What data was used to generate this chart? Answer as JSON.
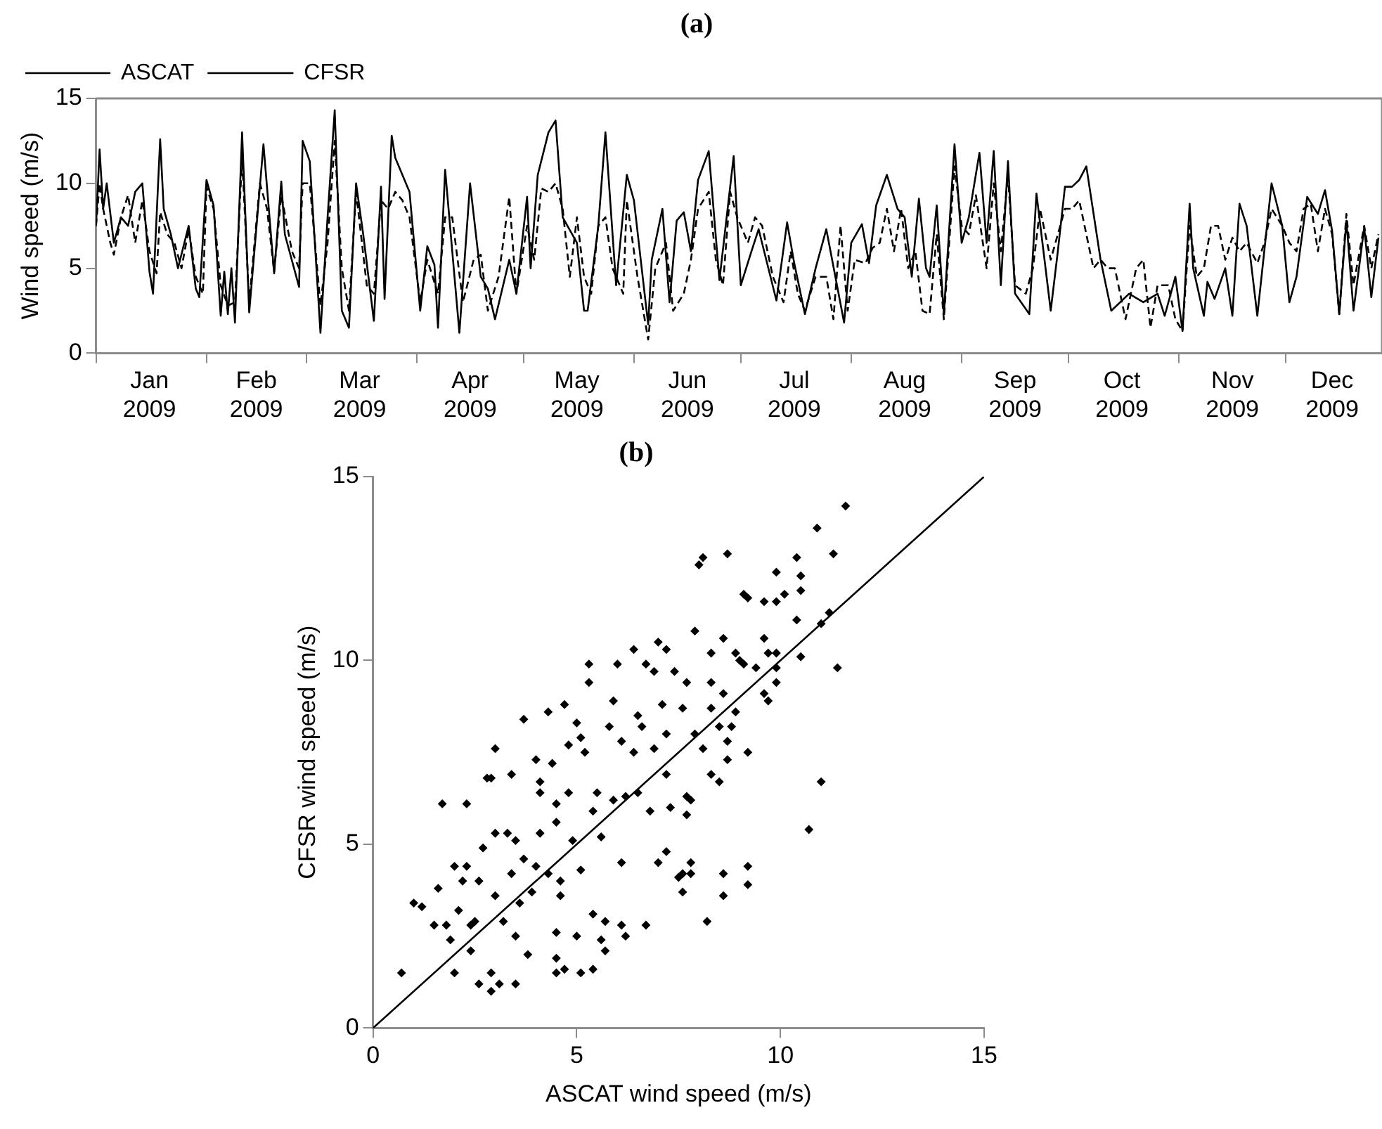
{
  "chart_data": [
    {
      "type": "line",
      "title": "(a)",
      "ylabel": "Wind speed (m/s)",
      "legend": "top left",
      "marker": "none",
      "grid": false,
      "xlim": [
        "2009-01-01",
        "2009-12-28"
      ],
      "xticks": [
        {
          "value": "2009-01-01",
          "label": null
        },
        {
          "value": "2009-01-16",
          "label": "Jan 2009"
        },
        {
          "value": "2009-02-01",
          "label": null
        },
        {
          "value": "2009-02-15",
          "label": "Feb 2009"
        },
        {
          "value": "2009-03-01",
          "label": null
        },
        {
          "value": "2009-03-16",
          "label": "Mar 2009"
        },
        {
          "value": "2009-04-01",
          "label": null
        },
        {
          "value": "2009-04-16",
          "label": "Apr 2009"
        },
        {
          "value": "2009-05-01",
          "label": null
        },
        {
          "value": "2009-05-16",
          "label": "May 2009"
        },
        {
          "value": "2009-06-01",
          "label": null
        },
        {
          "value": "2009-06-16",
          "label": "Jun 2009"
        },
        {
          "value": "2009-07-01",
          "label": null
        },
        {
          "value": "2009-07-16",
          "label": "Jul 2009"
        },
        {
          "value": "2009-08-01",
          "label": null
        },
        {
          "value": "2009-08-16",
          "label": "Aug 2009"
        },
        {
          "value": "2009-09-01",
          "label": null
        },
        {
          "value": "2009-09-16",
          "label": "Sep 2009"
        },
        {
          "value": "2009-10-01",
          "label": null
        },
        {
          "value": "2009-10-16",
          "label": "Oct 2009"
        },
        {
          "value": "2009-11-01",
          "label": null
        },
        {
          "value": "2009-11-16",
          "label": "Nov 2009"
        },
        {
          "value": "2009-12-01",
          "label": null
        },
        {
          "value": "2009-12-14",
          "label": "Dec 2009"
        }
      ],
      "ylim": [
        0,
        15
      ],
      "yticks": [
        0,
        5,
        10,
        15
      ],
      "series": [
        {
          "name": "ASCAT",
          "color": "#000000",
          "line_style": "dashed",
          "x": [
            "2009-01-01",
            "2009-01-02",
            "2009-01-03",
            "2009-01-05",
            "2009-01-06",
            "2009-01-08",
            "2009-01-10",
            "2009-01-12",
            "2009-01-14",
            "2009-01-16",
            "2009-01-18",
            "2009-01-19",
            "2009-01-21",
            "2009-01-23",
            "2009-01-25",
            "2009-01-27",
            "2009-01-29",
            "2009-01-31",
            "2009-02-01",
            "2009-02-03",
            "2009-02-05",
            "2009-02-07",
            "2009-02-09",
            "2009-02-11",
            "2009-02-13",
            "2009-02-16",
            "2009-02-18",
            "2009-02-20",
            "2009-02-22",
            "2009-02-25",
            "2009-02-27",
            "2009-02-28",
            "2009-03-02",
            "2009-03-05",
            "2009-03-07",
            "2009-03-09",
            "2009-03-11",
            "2009-03-13",
            "2009-03-15",
            "2009-03-18",
            "2009-03-20",
            "2009-03-22",
            "2009-03-24",
            "2009-03-26",
            "2009-03-28",
            "2009-03-30",
            "2009-04-02",
            "2009-04-04",
            "2009-04-07",
            "2009-04-09",
            "2009-04-11",
            "2009-04-14",
            "2009-04-17",
            "2009-04-19",
            "2009-04-21",
            "2009-04-24",
            "2009-04-27",
            "2009-04-29",
            "2009-05-02",
            "2009-05-04",
            "2009-05-06",
            "2009-05-08",
            "2009-05-10",
            "2009-05-12",
            "2009-05-14",
            "2009-05-16",
            "2009-05-18",
            "2009-05-20",
            "2009-05-22",
            "2009-05-24",
            "2009-05-26",
            "2009-05-29",
            "2009-05-30",
            "2009-06-02",
            "2009-06-05",
            "2009-06-07",
            "2009-06-10",
            "2009-06-12",
            "2009-06-15",
            "2009-06-17",
            "2009-06-19",
            "2009-06-22",
            "2009-06-24",
            "2009-06-26",
            "2009-06-28",
            "2009-06-30",
            "2009-07-03",
            "2009-07-05",
            "2009-07-07",
            "2009-07-10",
            "2009-07-13",
            "2009-07-15",
            "2009-07-17",
            "2009-07-19",
            "2009-07-22",
            "2009-07-25",
            "2009-07-27",
            "2009-07-29",
            "2009-07-31",
            "2009-08-02",
            "2009-08-05",
            "2009-08-07",
            "2009-08-09",
            "2009-08-11",
            "2009-08-13",
            "2009-08-15",
            "2009-08-17",
            "2009-08-19",
            "2009-08-21",
            "2009-08-23",
            "2009-08-25",
            "2009-08-27",
            "2009-08-30",
            "2009-09-01",
            "2009-09-03",
            "2009-09-05",
            "2009-09-08",
            "2009-09-10",
            "2009-09-12",
            "2009-09-14",
            "2009-09-16",
            "2009-09-19",
            "2009-09-21",
            "2009-09-23",
            "2009-09-26",
            "2009-09-28",
            "2009-09-30",
            "2009-10-02",
            "2009-10-04",
            "2009-10-06",
            "2009-10-08",
            "2009-10-10",
            "2009-10-12",
            "2009-10-14",
            "2009-10-17",
            "2009-10-20",
            "2009-10-22",
            "2009-10-24",
            "2009-10-26",
            "2009-10-29",
            "2009-10-31",
            "2009-11-02",
            "2009-11-04",
            "2009-11-06",
            "2009-11-08",
            "2009-11-10",
            "2009-11-12",
            "2009-11-14",
            "2009-11-16",
            "2009-11-18",
            "2009-11-20",
            "2009-11-23",
            "2009-11-25",
            "2009-11-27",
            "2009-11-30",
            "2009-12-02",
            "2009-12-04",
            "2009-12-06",
            "2009-12-08",
            "2009-12-10",
            "2009-12-12",
            "2009-12-14",
            "2009-12-16",
            "2009-12-18",
            "2009-12-20",
            "2009-12-23",
            "2009-12-25",
            "2009-12-27"
          ],
          "values": [
            7.5,
            10,
            8.5,
            6.5,
            5.8,
            8,
            9.3,
            6.5,
            9,
            6,
            4.7,
            8.3,
            7,
            6.5,
            5,
            7.3,
            4.5,
            3.5,
            9.8,
            8.5,
            4,
            2.8,
            3,
            11.5,
            3,
            10,
            8.5,
            4.8,
            9.3,
            6,
            5,
            10,
            10,
            2.8,
            6.5,
            12.5,
            5,
            2.5,
            9.5,
            4,
            3.5,
            9,
            8.5,
            9.5,
            9,
            8,
            3,
            5.5,
            3.5,
            8,
            8,
            3,
            5.5,
            5.8,
            2.5,
            4.5,
            9.2,
            3.5,
            7.5,
            5.5,
            9.7,
            9.5,
            10,
            8.5,
            4.5,
            8,
            4.5,
            3.5,
            7.5,
            8,
            5,
            3.5,
            9,
            4.5,
            0.8,
            5,
            6.5,
            2.5,
            3.5,
            5.5,
            8.5,
            9.5,
            5.5,
            4,
            9.5,
            8,
            6.5,
            8,
            7.5,
            4.5,
            3,
            6,
            3.5,
            2.5,
            4.5,
            4.5,
            2,
            7.5,
            2.5,
            5.5,
            5.3,
            6.2,
            6.5,
            8.5,
            6,
            8.5,
            5,
            6,
            2.5,
            2.3,
            7,
            2,
            11,
            7.5,
            7,
            9.3,
            5,
            10,
            6,
            10.5,
            4,
            3.5,
            5,
            8.5,
            5.5,
            7,
            8.5,
            8.5,
            9,
            7,
            5,
            5.5,
            5,
            5,
            2,
            5,
            5.5,
            1.5,
            4,
            4,
            2,
            1.3,
            7.5,
            4.5,
            5,
            7.5,
            7.5,
            5.5,
            6.8,
            6,
            6.5,
            5.3,
            6.5,
            8.5,
            7.5,
            6.5,
            6,
            8.5,
            8.8,
            6,
            8.5,
            7,
            2.3,
            8.2,
            4,
            7.5,
            5,
            7
          ]
        },
        {
          "name": "CFSR",
          "color": "#000000",
          "line_style": "solid",
          "x": [
            "2009-01-01",
            "2009-01-02",
            "2009-01-03",
            "2009-01-04",
            "2009-01-06",
            "2009-01-08",
            "2009-01-10",
            "2009-01-12",
            "2009-01-14",
            "2009-01-16",
            "2009-01-17",
            "2009-01-19",
            "2009-01-20",
            "2009-01-22",
            "2009-01-24",
            "2009-01-27",
            "2009-01-29",
            "2009-01-30",
            "2009-02-01",
            "2009-02-03",
            "2009-02-05",
            "2009-02-06",
            "2009-02-07",
            "2009-02-08",
            "2009-02-09",
            "2009-02-11",
            "2009-02-13",
            "2009-02-17",
            "2009-02-20",
            "2009-02-22",
            "2009-02-23",
            "2009-02-27",
            "2009-02-28",
            "2009-03-02",
            "2009-03-05",
            "2009-03-07",
            "2009-03-09",
            "2009-03-11",
            "2009-03-13",
            "2009-03-15",
            "2009-03-17",
            "2009-03-20",
            "2009-03-22",
            "2009-03-23",
            "2009-03-25",
            "2009-03-26",
            "2009-03-30",
            "2009-04-02",
            "2009-04-04",
            "2009-04-06",
            "2009-04-07",
            "2009-04-09",
            "2009-04-13",
            "2009-04-16",
            "2009-04-19",
            "2009-04-21",
            "2009-04-23",
            "2009-04-27",
            "2009-04-29",
            "2009-05-02",
            "2009-05-03",
            "2009-05-05",
            "2009-05-08",
            "2009-05-10",
            "2009-05-12",
            "2009-05-16",
            "2009-05-18",
            "2009-05-19",
            "2009-05-22",
            "2009-05-24",
            "2009-05-27",
            "2009-05-30",
            "2009-06-01",
            "2009-06-04",
            "2009-06-05",
            "2009-06-06",
            "2009-06-09",
            "2009-06-11",
            "2009-06-13",
            "2009-06-15",
            "2009-06-17",
            "2009-06-19",
            "2009-06-22",
            "2009-06-25",
            "2009-06-29",
            "2009-07-01",
            "2009-07-04",
            "2009-07-06",
            "2009-07-11",
            "2009-07-14",
            "2009-07-16",
            "2009-07-19",
            "2009-07-22",
            "2009-07-25",
            "2009-07-28",
            "2009-07-30",
            "2009-08-01",
            "2009-08-04",
            "2009-08-06",
            "2009-08-08",
            "2009-08-11",
            "2009-08-14",
            "2009-08-16",
            "2009-08-18",
            "2009-08-20",
            "2009-08-22",
            "2009-08-23",
            "2009-08-25",
            "2009-08-27",
            "2009-08-30",
            "2009-09-01",
            "2009-09-03",
            "2009-09-06",
            "2009-09-08",
            "2009-09-10",
            "2009-09-12",
            "2009-09-14",
            "2009-09-16",
            "2009-09-20",
            "2009-09-22",
            "2009-09-26",
            "2009-09-28",
            "2009-09-30",
            "2009-10-02",
            "2009-10-04",
            "2009-10-06",
            "2009-10-10",
            "2009-10-13",
            "2009-10-18",
            "2009-10-22",
            "2009-10-26",
            "2009-10-28",
            "2009-10-31",
            "2009-11-02",
            "2009-11-04",
            "2009-11-05",
            "2009-11-08",
            "2009-11-09",
            "2009-11-11",
            "2009-11-14",
            "2009-11-16",
            "2009-11-18",
            "2009-11-20",
            "2009-11-23",
            "2009-11-27",
            "2009-11-30",
            "2009-12-02",
            "2009-12-04",
            "2009-12-07",
            "2009-12-10",
            "2009-12-12",
            "2009-12-14",
            "2009-12-16",
            "2009-12-18",
            "2009-12-20",
            "2009-12-23",
            "2009-12-25",
            "2009-12-27"
          ],
          "values": [
            7.5,
            12,
            8.5,
            10,
            6.5,
            8,
            7.5,
            9.5,
            10,
            4.8,
            3.5,
            12.6,
            8.5,
            7,
            5,
            7.5,
            3.8,
            3.3,
            10.2,
            8.7,
            2.2,
            4.8,
            2.3,
            5,
            1.8,
            13,
            2.4,
            12.3,
            4.7,
            10.1,
            7,
            3.9,
            12.5,
            11.3,
            1.2,
            8,
            14.3,
            2.5,
            1.5,
            10,
            7,
            1.9,
            9.8,
            3.2,
            12.8,
            11.5,
            9.5,
            2.5,
            6.3,
            5.2,
            1.5,
            10.8,
            1.2,
            10,
            4.5,
            3.8,
            2,
            5.5,
            3.5,
            9.2,
            5,
            10.5,
            13,
            13.7,
            8,
            6.5,
            2.5,
            2.5,
            7.5,
            13,
            4,
            10.5,
            9,
            3.5,
            1.7,
            5.5,
            8.5,
            3,
            7.8,
            8.3,
            6,
            10.2,
            11.9,
            4.3,
            11.6,
            4,
            6,
            7.3,
            3.1,
            7.7,
            5.3,
            2.3,
            5,
            7.3,
            4,
            1.8,
            6.5,
            7.6,
            5.3,
            8.7,
            10.5,
            8.5,
            8,
            4.5,
            9.1,
            5,
            4.5,
            8.7,
            2.3,
            12.3,
            6.5,
            8,
            11.8,
            6.5,
            11.9,
            4,
            11.3,
            3.5,
            2.3,
            9.4,
            2.5,
            6,
            9.8,
            9.8,
            10.2,
            11,
            5.5,
            2.5,
            3.5,
            3,
            3.5,
            2.2,
            4.5,
            1.3,
            8.8,
            5,
            2.2,
            4.2,
            3.2,
            5,
            2.2,
            8.8,
            7.5,
            2.2,
            10,
            7.5,
            3,
            4.5,
            9.2,
            8.2,
            9.6,
            7.2,
            2.3,
            7.8,
            2.5,
            7.4,
            3.3,
            6.8
          ]
        }
      ]
    },
    {
      "type": "scatter",
      "title": "(b)",
      "xlabel": "ASCAT wind speed (m/s)",
      "ylabel": "CFSR wind speed (m/s)",
      "grid": false,
      "xlim": [
        0,
        15
      ],
      "xticks": [
        0,
        5,
        10,
        15
      ],
      "ylim": [
        0,
        15
      ],
      "yticks": [
        0,
        5,
        10,
        15
      ],
      "series": [
        {
          "type": "scatter",
          "color": "#000000",
          "marker": "diamond",
          "x": [
            0.7,
            1.0,
            1.2,
            1.6,
            1.7,
            1.5,
            1.8,
            1.9,
            2.0,
            2.0,
            2.1,
            2.2,
            2.3,
            2.3,
            2.4,
            2.4,
            2.5,
            2.6,
            2.6,
            2.7,
            2.8,
            2.9,
            2.9,
            2.9,
            3.0,
            3.0,
            3.0,
            3.1,
            3.2,
            3.3,
            3.4,
            3.4,
            3.5,
            3.5,
            3.5,
            3.6,
            3.7,
            3.7,
            3.8,
            3.9,
            4.0,
            4.0,
            4.1,
            4.1,
            4.1,
            4.3,
            4.3,
            4.4,
            4.5,
            4.5,
            4.5,
            4.5,
            4.5,
            4.6,
            4.6,
            4.7,
            4.7,
            4.8,
            4.8,
            4.9,
            5.0,
            5.0,
            5.1,
            5.1,
            5.2,
            5.1,
            5.3,
            5.3,
            5.4,
            5.4,
            5.4,
            5.5,
            5.6,
            5.6,
            5.7,
            5.7,
            5.8,
            5.9,
            5.9,
            6.0,
            6.1,
            6.1,
            6.1,
            6.2,
            6.2,
            6.4,
            6.4,
            6.5,
            6.5,
            6.6,
            6.7,
            6.7,
            6.8,
            6.9,
            6.9,
            7.0,
            7.0,
            7.1,
            7.2,
            7.2,
            7.2,
            7.2,
            7.3,
            7.4,
            7.5,
            7.6,
            7.7,
            7.7,
            7.8,
            8.2,
            7.6,
            7.8,
            7.6,
            8.6,
            8.6,
            9.2,
            9.2,
            9.2,
            7.7,
            7.8,
            8.3,
            8.5,
            8.7,
            8.7,
            8.8,
            8.5,
            8.1,
            7.9,
            8.6,
            8.3,
            8.3,
            8.6,
            8.9,
            9.0,
            9.1,
            9.4,
            9.6,
            9.7,
            9.7,
            9.9,
            9.9,
            9.9,
            10.5,
            10.7,
            11.0,
            11.4,
            11.2,
            11.0,
            10.4,
            10.5,
            10.5,
            10.1,
            9.9,
            9.6,
            9.9,
            10.4,
            10.9,
            11.3,
            11.6,
            9.1,
            9.2,
            8.0,
            8.1,
            8.7,
            7.9,
            9.6,
            8.9,
            8.3
          ],
          "values": [
            1.5,
            3.4,
            3.3,
            3.8,
            6.1,
            2.8,
            2.8,
            2.4,
            4.4,
            1.5,
            3.2,
            4.0,
            4.4,
            6.1,
            2.1,
            2.8,
            2.9,
            1.2,
            4.0,
            4.9,
            6.8,
            6.8,
            1.0,
            1.5,
            3.6,
            7.6,
            5.3,
            1.2,
            2.9,
            5.3,
            6.9,
            4.2,
            2.5,
            1.2,
            5.1,
            3.4,
            8.4,
            4.6,
            2.0,
            3.7,
            7.3,
            4.4,
            6.7,
            6.4,
            5.3,
            8.6,
            4.2,
            7.2,
            1.9,
            1.5,
            2.6,
            6.1,
            5.6,
            3.6,
            4.0,
            8.8,
            1.6,
            7.7,
            6.4,
            5.1,
            8.3,
            2.5,
            7.9,
            4.3,
            7.5,
            1.5,
            9.9,
            9.4,
            1.6,
            5.9,
            3.1,
            6.4,
            2.4,
            5.2,
            2.9,
            2.1,
            8.2,
            6.2,
            8.9,
            9.9,
            4.5,
            2.8,
            7.8,
            2.5,
            6.3,
            7.5,
            10.3,
            8.5,
            6.4,
            8.2,
            2.8,
            9.9,
            5.9,
            7.6,
            9.7,
            4.5,
            10.5,
            8.8,
            6.9,
            10.3,
            4.8,
            8.0,
            6.0,
            9.7,
            4.1,
            8.7,
            6.3,
            9.4,
            4.2,
            2.9,
            3.7,
            4.5,
            4.2,
            4.2,
            3.6,
            4.4,
            3.9,
            7.5,
            5.8,
            6.2,
            6.9,
            6.7,
            7.3,
            7.8,
            8.2,
            8.2,
            7.6,
            8.0,
            9.1,
            9.4,
            10.2,
            10.6,
            10.2,
            10.0,
            9.9,
            9.8,
            10.6,
            8.9,
            10.2,
            9.4,
            10.2,
            9.8,
            10.1,
            5.4,
            6.7,
            9.8,
            11.3,
            11.0,
            11.1,
            11.9,
            12.3,
            11.8,
            11.6,
            11.6,
            12.4,
            12.8,
            13.6,
            12.9,
            14.2,
            11.8,
            11.7,
            12.6,
            12.8,
            12.9,
            10.8,
            9.1,
            8.6,
            8.7
          ]
        },
        {
          "type": "line",
          "color": "#000000",
          "line_style": "solid",
          "marker": "none",
          "x": [
            0,
            15
          ],
          "values": [
            0,
            15
          ]
        }
      ]
    }
  ]
}
